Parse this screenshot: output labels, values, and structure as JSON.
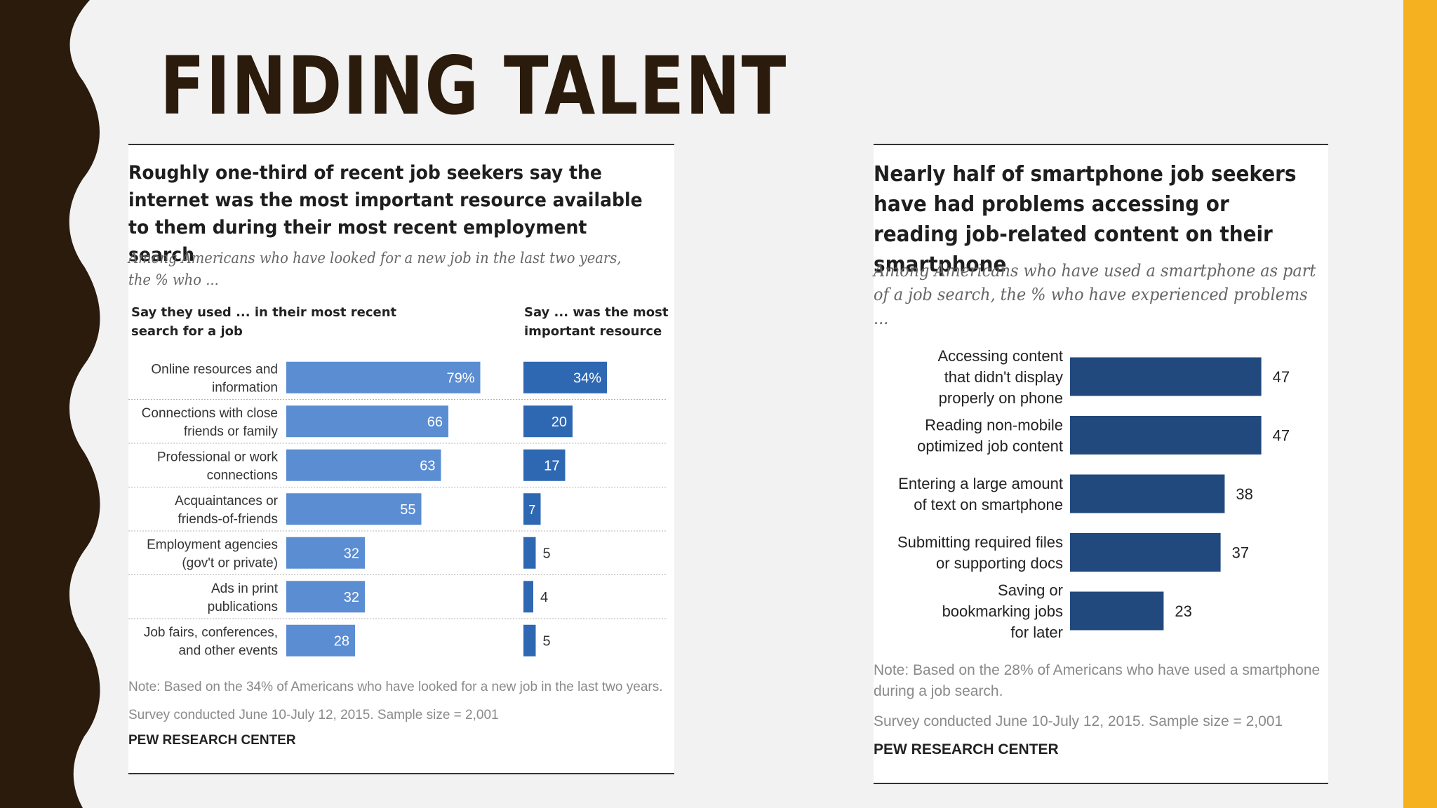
{
  "slide": {
    "title": "FINDING TALENT",
    "colors": {
      "left_band": "#2b1b0c",
      "right_bar": "#f5b120",
      "background": "#f2f2f2"
    }
  },
  "chart_data": [
    {
      "type": "bar",
      "orientation": "horizontal",
      "title": "Roughly one-third of recent job seekers say the internet was the most important resource available to them during their most recent employment search",
      "subtitle": "Among Americans who have looked for a new job in the last two years, the % who ...",
      "categories": [
        "Online resources and information",
        "Connections with close friends or family",
        "Professional or work connections",
        "Acquaintances or friends-of-friends",
        "Employment agencies (gov't or private)",
        "Ads in print publications",
        "Job fairs, conferences, and other events"
      ],
      "category_lines": [
        [
          "Online resources and",
          "information"
        ],
        [
          "Connections with close",
          "friends or family"
        ],
        [
          "Professional or work",
          "connections"
        ],
        [
          "Acquaintances or",
          "friends-of-friends"
        ],
        [
          "Employment agencies",
          "(gov't or private)"
        ],
        [
          "Ads in print",
          "publications"
        ],
        [
          "Job fairs, conferences,",
          "and other events"
        ]
      ],
      "series": [
        {
          "name": "Say they used ... in their most recent search for a job",
          "header_lines": [
            "Say they used ... in their most recent",
            "search for a job"
          ],
          "values": [
            79,
            66,
            63,
            55,
            32,
            32,
            28
          ],
          "labels": [
            "79%",
            "66",
            "63",
            "55",
            "32",
            "32",
            "28"
          ],
          "color": "#5b8dd3"
        },
        {
          "name": "Say ... was the most important resource",
          "header_lines": [
            "Say ... was the most",
            "important resource"
          ],
          "values": [
            34,
            20,
            17,
            7,
            5,
            4,
            5
          ],
          "labels": [
            "34%",
            "20",
            "17",
            "7",
            "5",
            "4",
            "5"
          ],
          "color": "#2e68b3"
        }
      ],
      "note": "Note: Based on the 34% of Americans who have looked for a new job in the last two years.",
      "survey": "Survey conducted June 10-July 12, 2015. Sample size = 2,001",
      "source": "PEW RESEARCH CENTER"
    },
    {
      "type": "bar",
      "orientation": "horizontal",
      "title": "Nearly half of smartphone job seekers have had problems accessing or reading job-related content on their smartphone",
      "subtitle": "Among Americans who have used a smartphone as part of a job search, the % who have experienced problems ...",
      "categories": [
        "Accessing content that didn't display properly on phone",
        "Reading non-mobile optimized job content",
        "Entering a large amount of text on smartphone",
        "Submitting required files or supporting docs",
        "Saving or bookmarking jobs for later"
      ],
      "category_lines": [
        [
          "Accessing content",
          "that didn't display",
          "properly on phone"
        ],
        [
          "Reading non-mobile",
          "optimized job content"
        ],
        [
          "Entering a large amount",
          "of text on smartphone"
        ],
        [
          "Submitting required files",
          "or supporting docs"
        ],
        [
          "Saving or",
          "bookmarking jobs",
          "for later"
        ]
      ],
      "values": [
        47,
        47,
        38,
        37,
        23
      ],
      "labels": [
        "47",
        "47",
        "38",
        "37",
        "23"
      ],
      "color": "#21497d",
      "note_lines": [
        "Note: Based on the 28% of Americans who have used a smartphone",
        "during a job search."
      ],
      "survey": "Survey conducted June 10-July 12, 2015. Sample size = 2,001",
      "source": "PEW RESEARCH CENTER"
    }
  ]
}
